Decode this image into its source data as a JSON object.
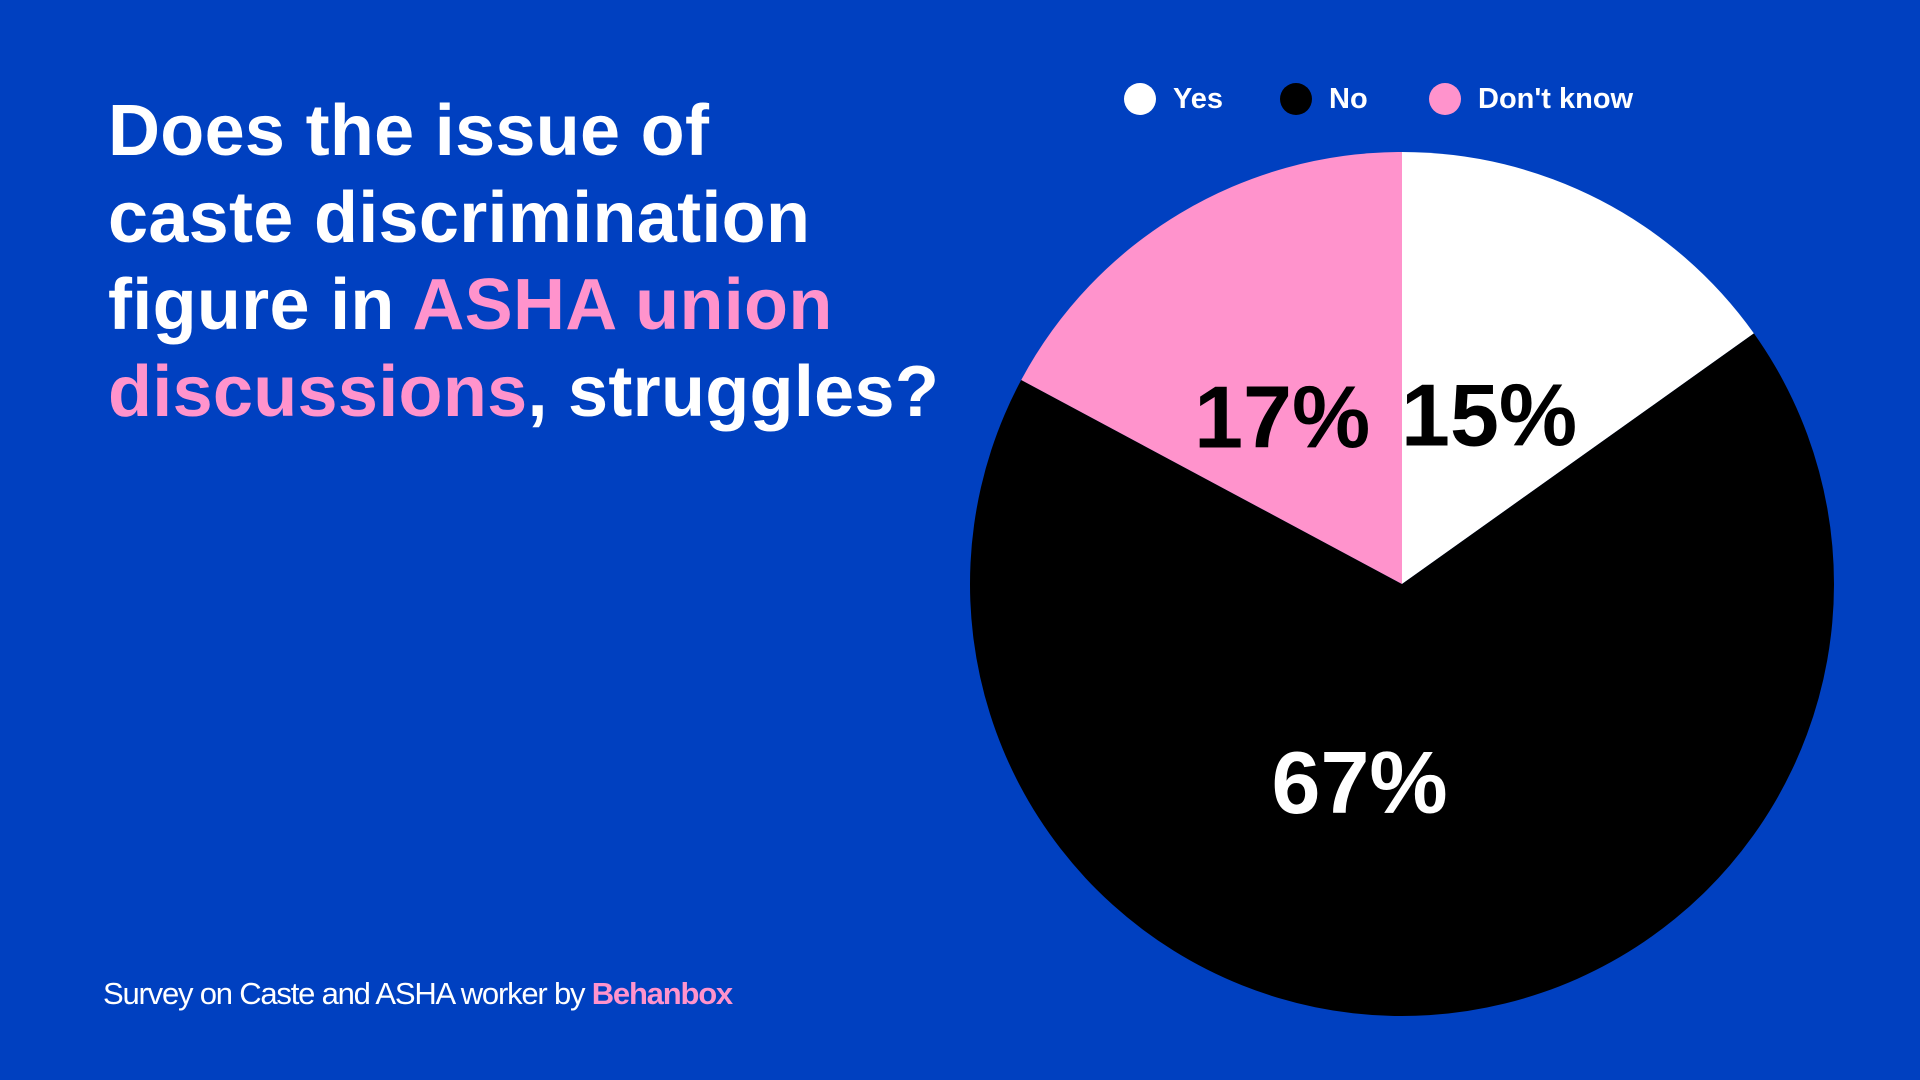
{
  "title": {
    "line1": "Does the issue of",
    "line2": "caste discrimination",
    "line3_plain": "figure in ",
    "line3_highlight": "ASHA union",
    "line4_highlight": "discussions",
    "line4_plain": ", struggles?"
  },
  "source": {
    "text": "Survey on Caste and ASHA worker by ",
    "brand": "Behanbox"
  },
  "colors": {
    "background": "#0040c0",
    "highlight": "#ff93cc",
    "title_text": "#ffffff"
  },
  "chart_data": {
    "type": "pie",
    "legend_position": "top",
    "slices": [
      {
        "label": "Yes",
        "value": 15,
        "value_label": "15%",
        "color": "#ffffff",
        "label_color": "#000000"
      },
      {
        "label": "No",
        "value": 67,
        "value_label": "67%",
        "color": "#000000",
        "label_color": "#ffffff"
      },
      {
        "label": "Don't know",
        "value": 17,
        "value_label": "17%",
        "color": "#ff93cc",
        "label_color": "#000000"
      }
    ]
  }
}
